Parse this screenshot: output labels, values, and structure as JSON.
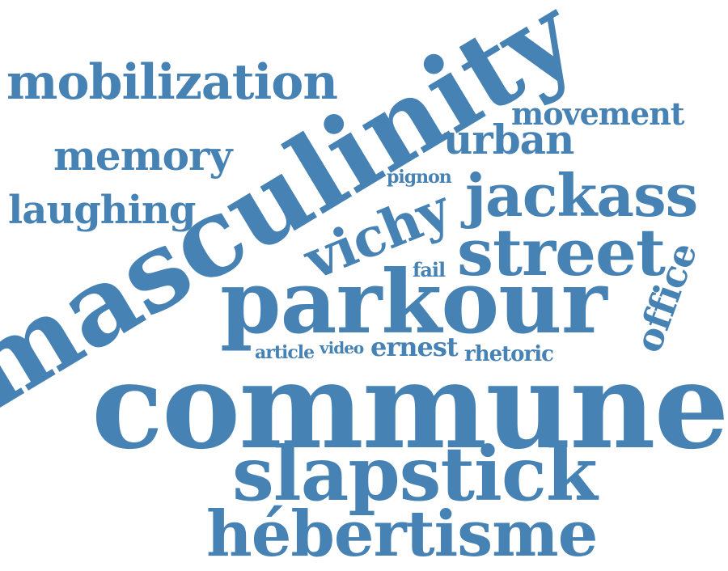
{
  "cloud": {
    "color": "#4682b4",
    "words": {
      "mobilization": "mobilization",
      "masculinity": "masculinity",
      "movement": "movement",
      "urban": "urban",
      "memory": "memory",
      "pignon": "pignon",
      "jackass": "jackass",
      "laughing": "laughing",
      "vichy": "vichy",
      "street": "street",
      "office": "office",
      "fail": "fail",
      "parkour": "parkour",
      "article": "article",
      "video": "video",
      "ernest": "ernest",
      "rhetoric": "rhetoric",
      "commune": "commune",
      "slapstick": "slapstick",
      "hebertisme": "hébertisme"
    }
  }
}
